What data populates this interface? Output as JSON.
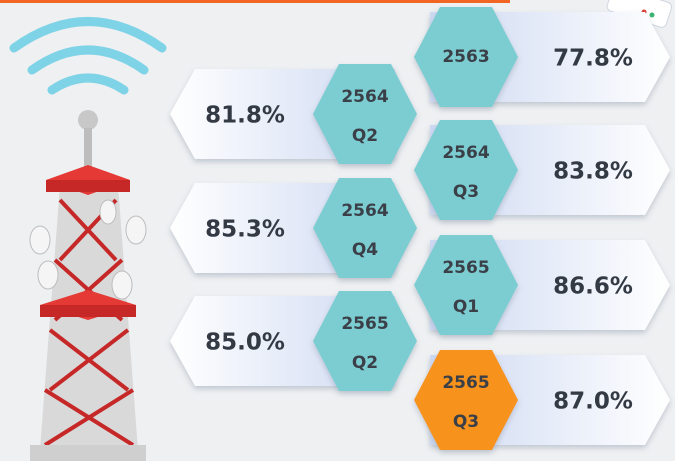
{
  "items": [
    {
      "year": "2563",
      "value": "77.8%",
      "color": "#7ccdd2"
    },
    {
      "year": "2564",
      "quarter": "Q2",
      "value": "81.8%",
      "color": "#7ccdd2"
    },
    {
      "year": "2564",
      "quarter": "Q3",
      "value": "83.8%",
      "color": "#7ccdd2"
    },
    {
      "year": "2564",
      "quarter": "Q4",
      "value": "85.3%",
      "color": "#7ccdd2"
    },
    {
      "year": "2565",
      "quarter": "Q1",
      "value": "86.6%",
      "color": "#7ccdd2"
    },
    {
      "year": "2565",
      "quarter": "Q2",
      "value": "85.0%",
      "color": "#7ccdd2"
    },
    {
      "year": "2565",
      "quarter": "Q3",
      "value": "87.0%",
      "color": "#f7931e"
    }
  ]
}
